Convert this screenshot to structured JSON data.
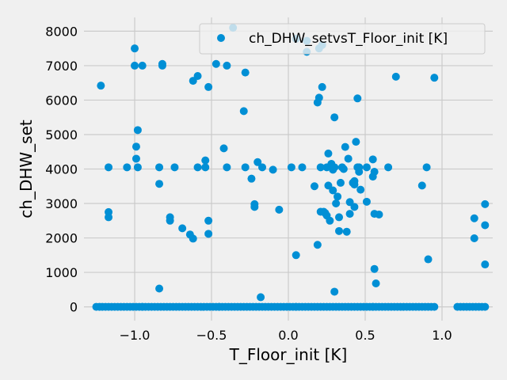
{
  "chart_data": {
    "type": "scatter",
    "title": "",
    "xlabel": "T_Floor_init [K]",
    "ylabel": "ch_DHW_set",
    "xlim": [
      -1.33,
      1.33
    ],
    "ylim": [
      -400,
      8400
    ],
    "xticks": [
      -1.0,
      -0.5,
      0.0,
      0.5,
      1.0
    ],
    "xtick_labels": [
      "−1.0",
      "−0.5",
      "0.0",
      "0.5",
      "1.0"
    ],
    "yticks": [
      0,
      1000,
      2000,
      3000,
      4000,
      5000,
      6000,
      7000,
      8000
    ],
    "ytick_labels": [
      "0",
      "1000",
      "2000",
      "3000",
      "4000",
      "5000",
      "6000",
      "7000",
      "8000"
    ],
    "grid": true,
    "legend_position": "top-right",
    "series": [
      {
        "name": "ch_DHW_setvsT_Floor_init [K]",
        "color": "#008fd5",
        "x": [
          -1.22,
          -1.17,
          -1.17,
          -1.17,
          -1.05,
          -1.0,
          -1.0,
          -0.99,
          -0.99,
          -0.98,
          -0.98,
          -0.95,
          -0.84,
          -0.84,
          -0.82,
          -0.82,
          -0.77,
          -0.77,
          -0.74,
          -0.69,
          -0.64,
          -0.62,
          -0.62,
          -0.59,
          -0.59,
          -0.54,
          -0.54,
          -0.52,
          -0.52,
          -0.52,
          -0.47,
          -0.42,
          -0.4,
          -0.4,
          -0.36,
          -0.29,
          -0.28,
          -0.28,
          -0.24,
          -0.22,
          -0.22,
          -0.2,
          -0.17,
          -0.1,
          -0.06,
          0.02,
          0.05,
          0.05,
          0.09,
          0.12,
          0.12,
          0.17,
          0.19,
          0.19,
          0.2,
          0.2,
          0.21,
          0.21,
          0.22,
          0.22,
          0.24,
          0.25,
          0.25,
          0.26,
          0.26,
          0.27,
          0.28,
          0.29,
          0.29,
          0.3,
          0.3,
          0.31,
          0.32,
          0.33,
          0.33,
          0.34,
          0.35,
          0.36,
          0.37,
          0.38,
          0.39,
          0.4,
          0.4,
          0.43,
          0.43,
          0.43,
          0.44,
          0.45,
          0.45,
          0.46,
          0.46,
          0.47,
          0.51,
          0.51,
          0.55,
          0.55,
          0.56,
          0.56,
          0.57,
          0.59,
          0.65,
          0.7,
          0.87,
          0.9,
          0.91,
          0.95,
          1.21,
          1.21,
          1.28,
          1.28,
          1.28,
          -0.84,
          -0.18,
          0.3,
          0.56,
          0.23,
          0.42
        ],
        "y": [
          6420,
          4050,
          2750,
          2600,
          4050,
          7500,
          7000,
          4650,
          4300,
          5130,
          4050,
          7000,
          4050,
          3570,
          7000,
          7050,
          2600,
          2500,
          4050,
          2280,
          2100,
          1980,
          6560,
          6700,
          4050,
          4050,
          4250,
          2500,
          2120,
          6380,
          7050,
          4600,
          7000,
          4050,
          8100,
          5680,
          4050,
          6800,
          3720,
          2980,
          2900,
          4200,
          4050,
          3980,
          2820,
          4050,
          1500,
          7780,
          4050,
          7400,
          7720,
          3500,
          1800,
          5930,
          6070,
          7500,
          2760,
          4050,
          6380,
          7600,
          2720,
          2650,
          4050,
          4450,
          3520,
          2500,
          4150,
          3980,
          3380,
          5500,
          4050,
          3000,
          3200,
          2600,
          2200,
          3600,
          4050,
          4000,
          4640,
          2180,
          4300,
          2700,
          3040,
          2900,
          3550,
          3650,
          4790,
          4050,
          6050,
          3920,
          4050,
          3400,
          3050,
          4050,
          4280,
          3780,
          2700,
          1100,
          680,
          2680,
          4050,
          6680,
          3520,
          4050,
          1380,
          6650,
          2570,
          1990,
          2980,
          2370,
          1230,
          530,
          280,
          440,
          3920,
          2760,
          3600
        ]
      }
    ],
    "baseline_band": {
      "y": 0,
      "x_segments": [
        [
          -1.25,
          -0.95
        ],
        [
          -0.95,
          -0.45
        ],
        [
          -0.45,
          0.05
        ],
        [
          0.05,
          0.55
        ],
        [
          0.55,
          0.95
        ],
        [
          1.1,
          1.28
        ]
      ],
      "point_step": 0.02
    }
  }
}
